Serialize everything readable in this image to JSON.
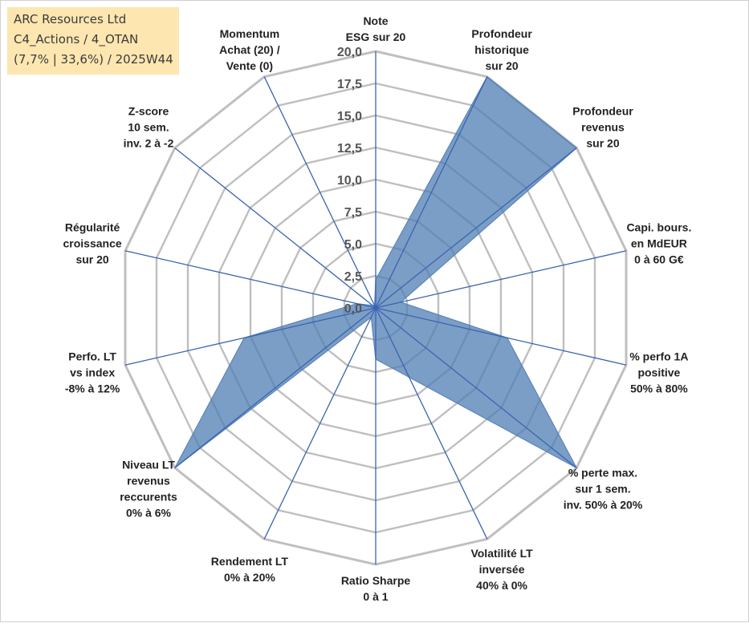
{
  "info_box": {
    "lines": [
      "ARC Resources Ltd",
      "C4_Actions / 4_OTAN",
      "(7,7% | 33,6%) / 2025W44"
    ]
  },
  "colors": {
    "series_fill": "#4f7db3",
    "series_stroke": "#5b84b8",
    "grid": "#bfbfbf",
    "spoke": "#3a64b0",
    "info_box_bg": "#fde6b0"
  },
  "chart_data": {
    "type": "radar",
    "title": "",
    "range": [
      0,
      20
    ],
    "ticks": [
      "0,0",
      "2,5",
      "5,0",
      "7,5",
      "10,0",
      "12,5",
      "15,0",
      "17,5",
      "20,0"
    ],
    "tick_values": [
      0,
      2.5,
      5,
      7.5,
      10,
      12.5,
      15,
      17.5,
      20
    ],
    "axes": [
      {
        "label": [
          "Note",
          "ESG sur 20"
        ]
      },
      {
        "label": [
          "Profondeur",
          "historique",
          "sur 20"
        ]
      },
      {
        "label": [
          "Profondeur",
          "revenus",
          "sur 20"
        ]
      },
      {
        "label": [
          "Capi. bours.",
          "en MdEUR",
          "0 à 60 G€"
        ]
      },
      {
        "label": [
          "% perfo 1A",
          "positive",
          "50% à 80%"
        ]
      },
      {
        "label": [
          "% perte max.",
          "sur 1 sem.",
          "inv. 50% à 20%"
        ]
      },
      {
        "label": [
          "Volatilité LT",
          "inversée",
          "40% à 0%"
        ]
      },
      {
        "label": [
          "Ratio Sharpe",
          "0 à 1"
        ]
      },
      {
        "label": [
          "Rendement LT",
          "0% à 20%"
        ]
      },
      {
        "label": [
          "Niveau LT",
          "revenus",
          "reccurents",
          "0% à 6%"
        ]
      },
      {
        "label": [
          "Perfo. LT",
          "vs index",
          "-8% à 12%"
        ]
      },
      {
        "label": [
          "Régularité",
          "croissance",
          "sur 20"
        ]
      },
      {
        "label": [
          "Z-score",
          "10 sem.",
          "inv. 2 à -2"
        ]
      },
      {
        "label": [
          "Momentum",
          "Achat (20) /",
          "Vente (0)"
        ]
      }
    ],
    "series": [
      {
        "values": [
          2.2,
          20,
          20,
          2.0,
          10.5,
          20,
          6.0,
          4.0,
          0.8,
          20,
          10.5,
          1.5,
          0.3,
          0.2
        ]
      }
    ],
    "grid": true,
    "legend": "none"
  }
}
